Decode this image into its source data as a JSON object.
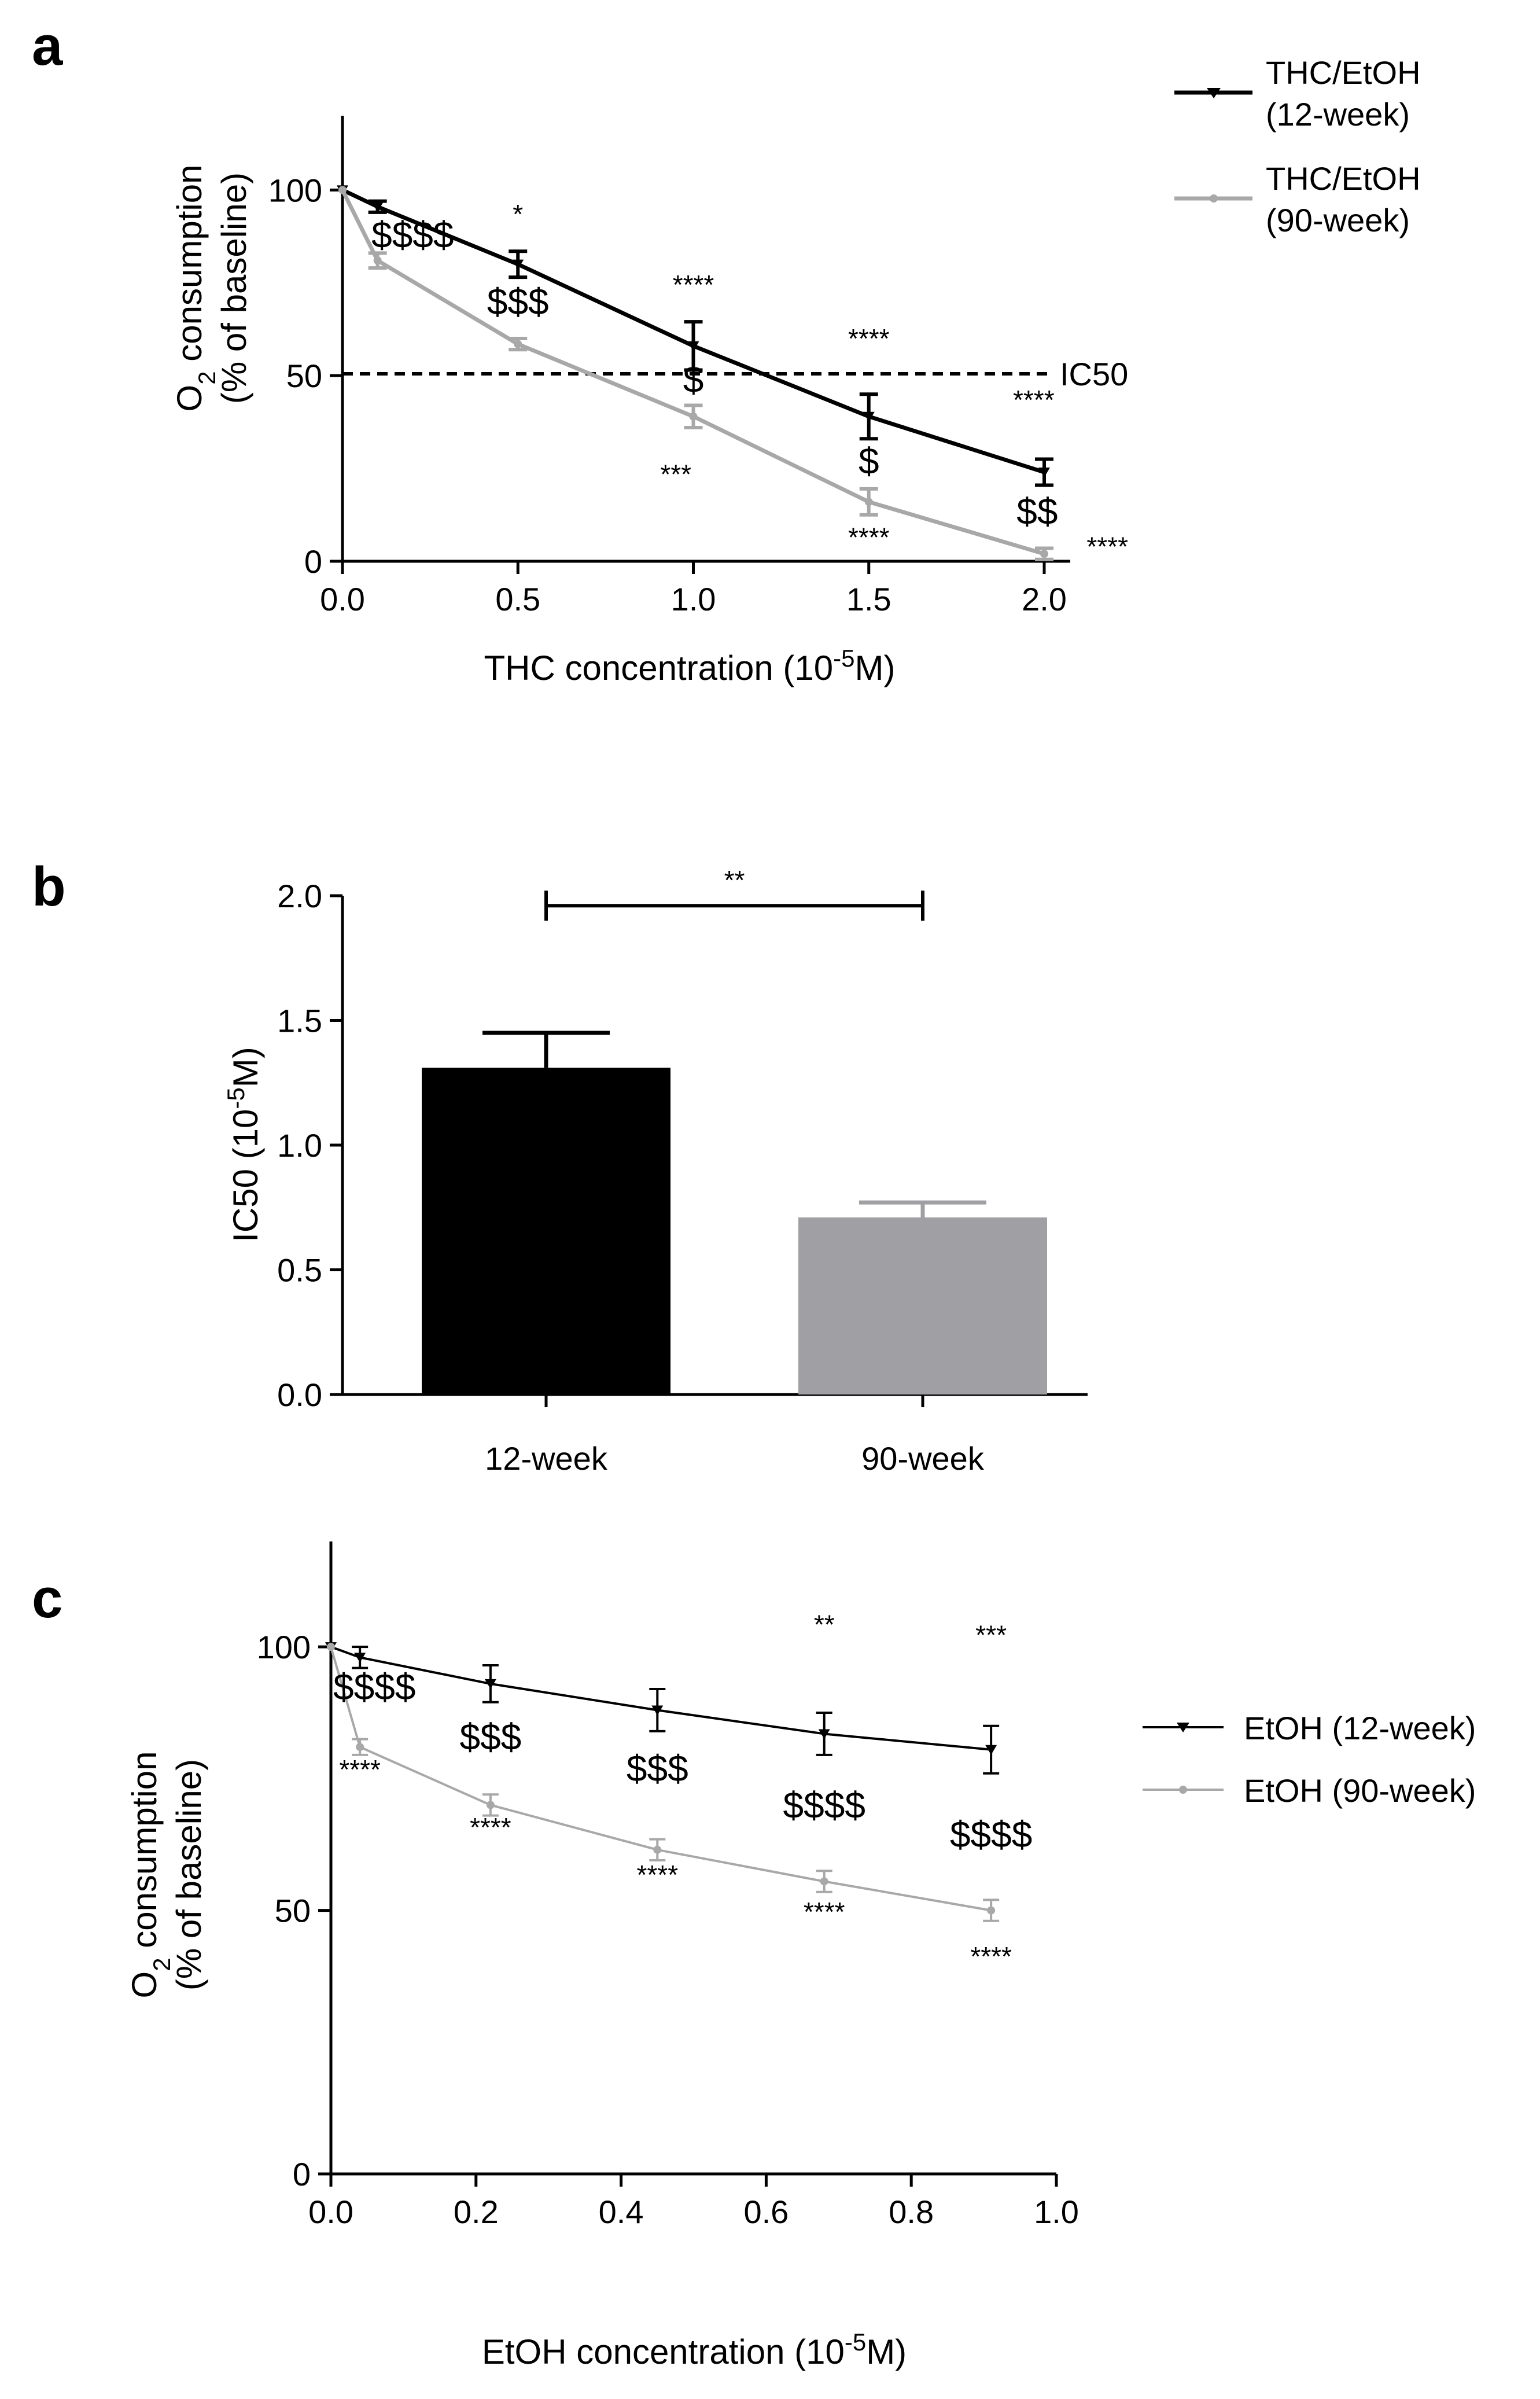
{
  "colors": {
    "black": "#000000",
    "gray": "#a8a8a8",
    "bar_gray": "#a0a0a4"
  },
  "chart_data": [
    {
      "id": "a",
      "panel_label": "a",
      "type": "line",
      "xlabel_main": "THC concentration (10",
      "xlabel_sup": "-5",
      "xlabel_end": "M)",
      "ylabel_line1_main": "O",
      "ylabel_line1_sub": "2",
      "ylabel_line1_end": " consumption",
      "ylabel_line2": "(% of baseline)",
      "xlim": [
        0,
        2
      ],
      "ylim": [
        0,
        120
      ],
      "xticks": [
        "0.0",
        "0.5",
        "1.0",
        "1.5",
        "2.0"
      ],
      "xtick_values": [
        0,
        0.5,
        1,
        1.5,
        2
      ],
      "yticks": [
        "0",
        "50",
        "100"
      ],
      "ytick_values": [
        0,
        50,
        100
      ],
      "series": [
        {
          "name_line1": "THC/EtOH",
          "name_line2": "(12-week)",
          "color": "#000000",
          "marker": "triangle-down",
          "x": [
            0,
            0.1,
            0.5,
            1.0,
            1.5,
            2.0
          ],
          "y": [
            100,
            95.5,
            80,
            58,
            39,
            24
          ],
          "err": [
            0,
            1.5,
            3.5,
            6.5,
            6,
            3.5
          ]
        },
        {
          "name_line1": "THC/EtOH",
          "name_line2": "(90-week)",
          "color": "#a8a8a8",
          "marker": "circle",
          "x": [
            0,
            0.1,
            0.5,
            1.0,
            1.5,
            2.0
          ],
          "y": [
            100,
            81,
            58.5,
            39,
            16,
            2
          ],
          "err": [
            0,
            2,
            1.5,
            3,
            3.5,
            1.5
          ]
        }
      ],
      "reference_line": {
        "y": 50.5,
        "label": "IC50",
        "style": "dashed"
      },
      "annotations": [
        {
          "text": "$$$$",
          "x": 0.2,
          "y": 84.5,
          "kind": "dollar"
        },
        {
          "text": "*",
          "x": 0.5,
          "y": 91,
          "kind": "star"
        },
        {
          "text": "$$$",
          "x": 0.5,
          "y": 66.5,
          "kind": "dollar"
        },
        {
          "text": "****",
          "x": 1.0,
          "y": 72,
          "kind": "star"
        },
        {
          "text": "$",
          "x": 1.0,
          "y": 45.5,
          "kind": "dollar"
        },
        {
          "text": "***",
          "x": 0.95,
          "y": 21,
          "kind": "star"
        },
        {
          "text": "****",
          "x": 1.5,
          "y": 57.5,
          "kind": "star"
        },
        {
          "text": "$",
          "x": 1.5,
          "y": 23.5,
          "kind": "dollar"
        },
        {
          "text": "****",
          "x": 1.5,
          "y": 4,
          "kind": "star"
        },
        {
          "text": "****",
          "x": 1.97,
          "y": 41,
          "kind": "star"
        },
        {
          "text": "$$",
          "x": 1.98,
          "y": 10,
          "kind": "dollar"
        },
        {
          "text": "****",
          "x": 2.18,
          "y": 1.5,
          "kind": "star"
        }
      ]
    },
    {
      "id": "b",
      "panel_label": "b",
      "type": "bar",
      "categories": [
        "12-week",
        "90-week"
      ],
      "values": [
        1.31,
        0.71
      ],
      "errors": [
        0.14,
        0.06
      ],
      "colors": [
        "#000000",
        "#a0a0a4"
      ],
      "ylabel_main": "IC50 (10",
      "ylabel_sup": "-5",
      "ylabel_end": "M)",
      "ylim": [
        0,
        2
      ],
      "yticks": [
        "0.0",
        "0.5",
        "1.0",
        "1.5",
        "2.0"
      ],
      "ytick_values": [
        0,
        0.5,
        1,
        1.5,
        2
      ],
      "significance": {
        "text": "**",
        "from": 0,
        "to": 1,
        "y": 1.96
      }
    },
    {
      "id": "c",
      "panel_label": "c",
      "type": "line",
      "xlabel_main": "EtOH concentration (10",
      "xlabel_sup": "-5",
      "xlabel_end": "M)",
      "ylabel_line1_main": "O",
      "ylabel_line1_sub": "2",
      "ylabel_line1_end": " consumption",
      "ylabel_line2": "(% of baseline)",
      "xlim": [
        0,
        1
      ],
      "ylim": [
        0,
        120
      ],
      "xticks": [
        "0.0",
        "0.2",
        "0.4",
        "0.6",
        "0.8",
        "1.0"
      ],
      "xtick_values": [
        0,
        0.2,
        0.4,
        0.6,
        0.8,
        1.0
      ],
      "yticks": [
        "0",
        "50",
        "100"
      ],
      "ytick_values": [
        0,
        50,
        100
      ],
      "series": [
        {
          "name": "EtOH (12-week)",
          "color": "#000000",
          "marker": "triangle-down",
          "x": [
            0,
            0.04,
            0.22,
            0.45,
            0.68,
            0.91
          ],
          "y": [
            100,
            98,
            93,
            88,
            83.5,
            80.5
          ],
          "err": [
            0,
            2,
            3.5,
            4,
            4,
            4.5
          ]
        },
        {
          "name": "EtOH (90-week)",
          "color": "#a8a8a8",
          "marker": "circle",
          "x": [
            0,
            0.04,
            0.22,
            0.45,
            0.68,
            0.91
          ],
          "y": [
            100,
            81,
            70,
            61.5,
            55.5,
            50
          ],
          "err": [
            0,
            1.5,
            2,
            2,
            2,
            2
          ]
        }
      ],
      "annotations": [
        {
          "text": "$$$$",
          "x": 0.06,
          "y": 90,
          "kind": "dollar"
        },
        {
          "text": "****",
          "x": 0.04,
          "y": 75,
          "kind": "star"
        },
        {
          "text": "$$$",
          "x": 0.22,
          "y": 80.5,
          "kind": "dollar"
        },
        {
          "text": "****",
          "x": 0.22,
          "y": 64,
          "kind": "star"
        },
        {
          "text": "$$$",
          "x": 0.45,
          "y": 74.5,
          "kind": "dollar"
        },
        {
          "text": "****",
          "x": 0.45,
          "y": 55,
          "kind": "star"
        },
        {
          "text": "**",
          "x": 0.68,
          "y": 102.5,
          "kind": "star"
        },
        {
          "text": "$$$$",
          "x": 0.68,
          "y": 67.5,
          "kind": "dollar"
        },
        {
          "text": "****",
          "x": 0.68,
          "y": 48,
          "kind": "star"
        },
        {
          "text": "***",
          "x": 0.91,
          "y": 100.5,
          "kind": "star"
        },
        {
          "text": "$$$$",
          "x": 0.91,
          "y": 62,
          "kind": "dollar"
        },
        {
          "text": "****",
          "x": 0.91,
          "y": 39.5,
          "kind": "star"
        }
      ]
    }
  ]
}
